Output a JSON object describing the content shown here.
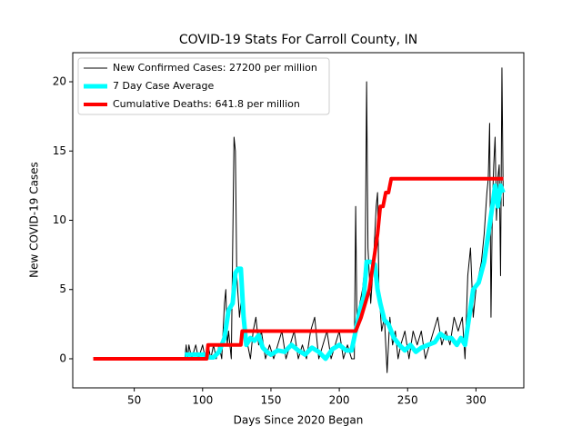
{
  "chart_data": {
    "type": "line",
    "title": "COVID-19 Stats For Carroll County, IN",
    "xlabel": "Days Since 2020 Began",
    "ylabel": "New COVID-19 Cases",
    "xlim": [
      5,
      335
    ],
    "ylim": [
      -2.1,
      22.1
    ],
    "xticks": [
      50,
      100,
      150,
      200,
      250,
      300
    ],
    "yticks": [
      0,
      5,
      10,
      15,
      20
    ],
    "grid": false,
    "legend": "upper-left",
    "series": [
      {
        "name": "New Confirmed Cases: 27200 per million",
        "color": "#000000",
        "width": 1,
        "x": [
          87,
          88,
          89,
          90,
          92,
          95,
          97,
          100,
          102,
          104,
          106,
          108,
          110,
          112,
          114,
          116,
          117,
          118,
          119,
          121,
          122,
          123,
          124,
          125,
          127,
          129,
          131,
          133,
          135,
          137,
          139,
          141,
          143,
          146,
          149,
          152,
          155,
          158,
          161,
          164,
          167,
          170,
          173,
          176,
          179,
          182,
          185,
          188,
          191,
          194,
          197,
          200,
          203,
          206,
          209,
          211,
          212,
          213,
          215,
          217,
          219,
          220,
          221,
          223,
          225,
          227,
          228,
          229,
          231,
          233,
          235,
          237,
          239,
          241,
          243,
          245,
          248,
          251,
          254,
          257,
          260,
          263,
          266,
          269,
          272,
          275,
          278,
          281,
          284,
          287,
          290,
          292,
          294,
          296,
          298,
          300,
          302,
          304,
          306,
          308,
          309,
          310,
          311,
          312,
          313,
          314,
          315,
          316,
          317,
          318,
          319,
          320
        ],
        "values": [
          0,
          1,
          0,
          1,
          0,
          1,
          0,
          1,
          0,
          1,
          0,
          1,
          0,
          1,
          0,
          4,
          5,
          1,
          2,
          0,
          8,
          16,
          15,
          6,
          3,
          5,
          2,
          1,
          0,
          2,
          3,
          1,
          2,
          0,
          1,
          0,
          1,
          2,
          0,
          1,
          2,
          0,
          1,
          0,
          2,
          3,
          0,
          1,
          2,
          0,
          1,
          2,
          0,
          1,
          0,
          0,
          11,
          2,
          4,
          5,
          7,
          20,
          8,
          4,
          7,
          11,
          12,
          5,
          2,
          3,
          -1,
          3,
          1,
          2,
          0,
          1,
          2,
          0,
          2,
          1,
          2,
          0,
          1,
          2,
          3,
          1,
          2,
          1,
          3,
          2,
          3,
          0,
          6,
          8,
          3,
          5,
          6,
          7,
          9,
          12,
          13,
          17,
          3,
          11,
          14,
          16,
          10,
          13,
          14,
          6,
          21,
          11
        ]
      },
      {
        "name": "7 Day Case Average",
        "color": "#00ffff",
        "width": 5,
        "x": [
          87,
          95,
          102,
          105,
          108,
          112,
          116,
          119,
          122,
          124,
          126,
          128,
          130,
          132,
          135,
          138,
          141,
          144,
          147,
          150,
          155,
          160,
          165,
          170,
          175,
          180,
          185,
          190,
          195,
          200,
          205,
          209,
          212,
          215,
          218,
          220,
          223,
          226,
          228,
          230,
          233,
          236,
          240,
          244,
          248,
          252,
          256,
          260,
          265,
          270,
          274,
          278,
          282,
          286,
          289,
          292,
          295,
          298,
          302,
          306,
          309,
          312,
          314,
          316,
          318,
          320
        ],
        "values": [
          0.3,
          0.3,
          0.3,
          0.1,
          0.1,
          0.5,
          1.5,
          3.5,
          4,
          6.2,
          6.5,
          6.5,
          3,
          1,
          1.5,
          1.3,
          1.7,
          0.8,
          0.5,
          0.3,
          0.6,
          0.5,
          1,
          0.6,
          0.3,
          0.8,
          0.5,
          0,
          0.7,
          1,
          0.6,
          0.6,
          2,
          3.5,
          4.5,
          7,
          7,
          6.8,
          5,
          4,
          2.8,
          2.5,
          1.5,
          1,
          0.6,
          1,
          0.5,
          0.8,
          1,
          1.2,
          1.8,
          1.5,
          1.5,
          1,
          1.5,
          1,
          3,
          5,
          5.5,
          7,
          9,
          11,
          12.5,
          11,
          12.5,
          12
        ]
      },
      {
        "name": "Cumulative Deaths: 641.8 per million",
        "color": "#ff0000",
        "width": 4,
        "x": [
          20,
          103,
          104,
          128,
          129,
          212,
          216,
          219,
          222,
          225,
          228,
          230,
          232,
          234,
          236,
          238,
          240,
          320
        ],
        "values": [
          0,
          0,
          1,
          1,
          2,
          2,
          3,
          4,
          5,
          7,
          9,
          11,
          11,
          12,
          12,
          13,
          13,
          13
        ]
      }
    ]
  }
}
